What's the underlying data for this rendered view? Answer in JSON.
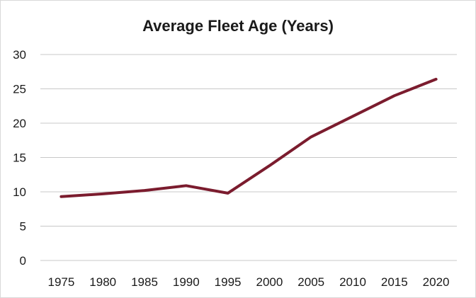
{
  "chart_data": {
    "type": "line",
    "title": "Average Fleet Age (Years)",
    "xlabel": "",
    "ylabel": "",
    "x": [
      "1975",
      "1980",
      "1985",
      "1990",
      "1995",
      "2000",
      "2005",
      "2010",
      "2015",
      "2020"
    ],
    "series": [
      {
        "values": [
          9.3,
          9.7,
          10.2,
          10.9,
          9.8,
          13.8,
          18.0,
          21.0,
          24.0,
          26.4
        ],
        "color": "#7b1c2e"
      }
    ],
    "ylim": [
      0,
      30
    ],
    "yticks": [
      "0",
      "5",
      "10",
      "15",
      "20",
      "25",
      "30"
    ],
    "grid": true,
    "legend": "none"
  }
}
